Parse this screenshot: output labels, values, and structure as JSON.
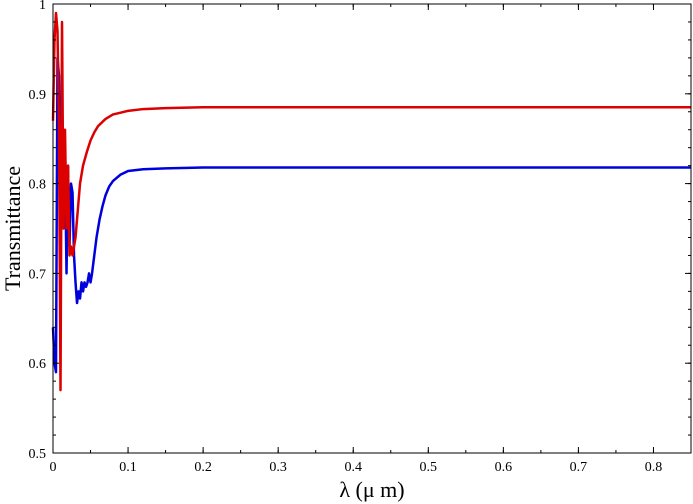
{
  "chart_data": {
    "type": "line",
    "title": "",
    "xlabel": "λ (μ m)",
    "ylabel": "Transmittance",
    "xlim": [
      0,
      0.85
    ],
    "ylim": [
      0.5,
      1.0
    ],
    "xticks": [
      0,
      0.1,
      0.2,
      0.3,
      0.4,
      0.5,
      0.6,
      0.7,
      0.8
    ],
    "xtick_labels": [
      "0",
      "0.1",
      "0.2",
      "0.3",
      "0.4",
      "0.5",
      "0.6",
      "0.7",
      "0.8"
    ],
    "yticks": [
      0.5,
      0.6,
      0.7,
      0.8,
      0.9,
      1.0
    ],
    "ytick_labels": [
      "0.5",
      "0.6",
      "0.7",
      "0.8",
      "0.9",
      "1"
    ],
    "grid": false,
    "legend": "none",
    "series": [
      {
        "color": "#0000dd",
        "x": [
          0.0,
          0.002,
          0.004,
          0.006,
          0.008,
          0.01,
          0.012,
          0.014,
          0.016,
          0.018,
          0.02,
          0.022,
          0.024,
          0.026,
          0.028,
          0.03,
          0.032,
          0.034,
          0.036,
          0.038,
          0.04,
          0.042,
          0.044,
          0.046,
          0.048,
          0.05,
          0.052,
          0.055,
          0.058,
          0.062,
          0.066,
          0.07,
          0.075,
          0.08,
          0.09,
          0.1,
          0.12,
          0.15,
          0.2,
          0.3,
          0.4,
          0.5,
          0.6,
          0.7,
          0.85
        ],
        "y": [
          0.64,
          0.6,
          0.59,
          0.94,
          0.92,
          0.76,
          0.82,
          0.75,
          0.83,
          0.7,
          0.82,
          0.73,
          0.8,
          0.79,
          0.72,
          0.69,
          0.667,
          0.68,
          0.672,
          0.69,
          0.68,
          0.69,
          0.685,
          0.69,
          0.7,
          0.69,
          0.7,
          0.72,
          0.74,
          0.76,
          0.775,
          0.787,
          0.797,
          0.803,
          0.81,
          0.814,
          0.816,
          0.817,
          0.818,
          0.818,
          0.818,
          0.818,
          0.818,
          0.818,
          0.818
        ]
      },
      {
        "color": "#dd0000",
        "x": [
          0.0,
          0.002,
          0.004,
          0.006,
          0.008,
          0.01,
          0.012,
          0.014,
          0.016,
          0.018,
          0.02,
          0.022,
          0.024,
          0.026,
          0.028,
          0.03,
          0.032,
          0.034,
          0.036,
          0.04,
          0.045,
          0.05,
          0.055,
          0.06,
          0.07,
          0.08,
          0.09,
          0.1,
          0.12,
          0.15,
          0.2,
          0.3,
          0.4,
          0.5,
          0.6,
          0.7,
          0.85
        ],
        "y": [
          0.87,
          0.96,
          0.99,
          0.97,
          0.86,
          0.57,
          0.98,
          0.75,
          0.86,
          0.75,
          0.82,
          0.72,
          0.73,
          0.72,
          0.73,
          0.74,
          0.76,
          0.78,
          0.8,
          0.82,
          0.835,
          0.848,
          0.857,
          0.864,
          0.872,
          0.877,
          0.879,
          0.881,
          0.883,
          0.884,
          0.885,
          0.885,
          0.885,
          0.885,
          0.885,
          0.885,
          0.885
        ]
      }
    ]
  }
}
